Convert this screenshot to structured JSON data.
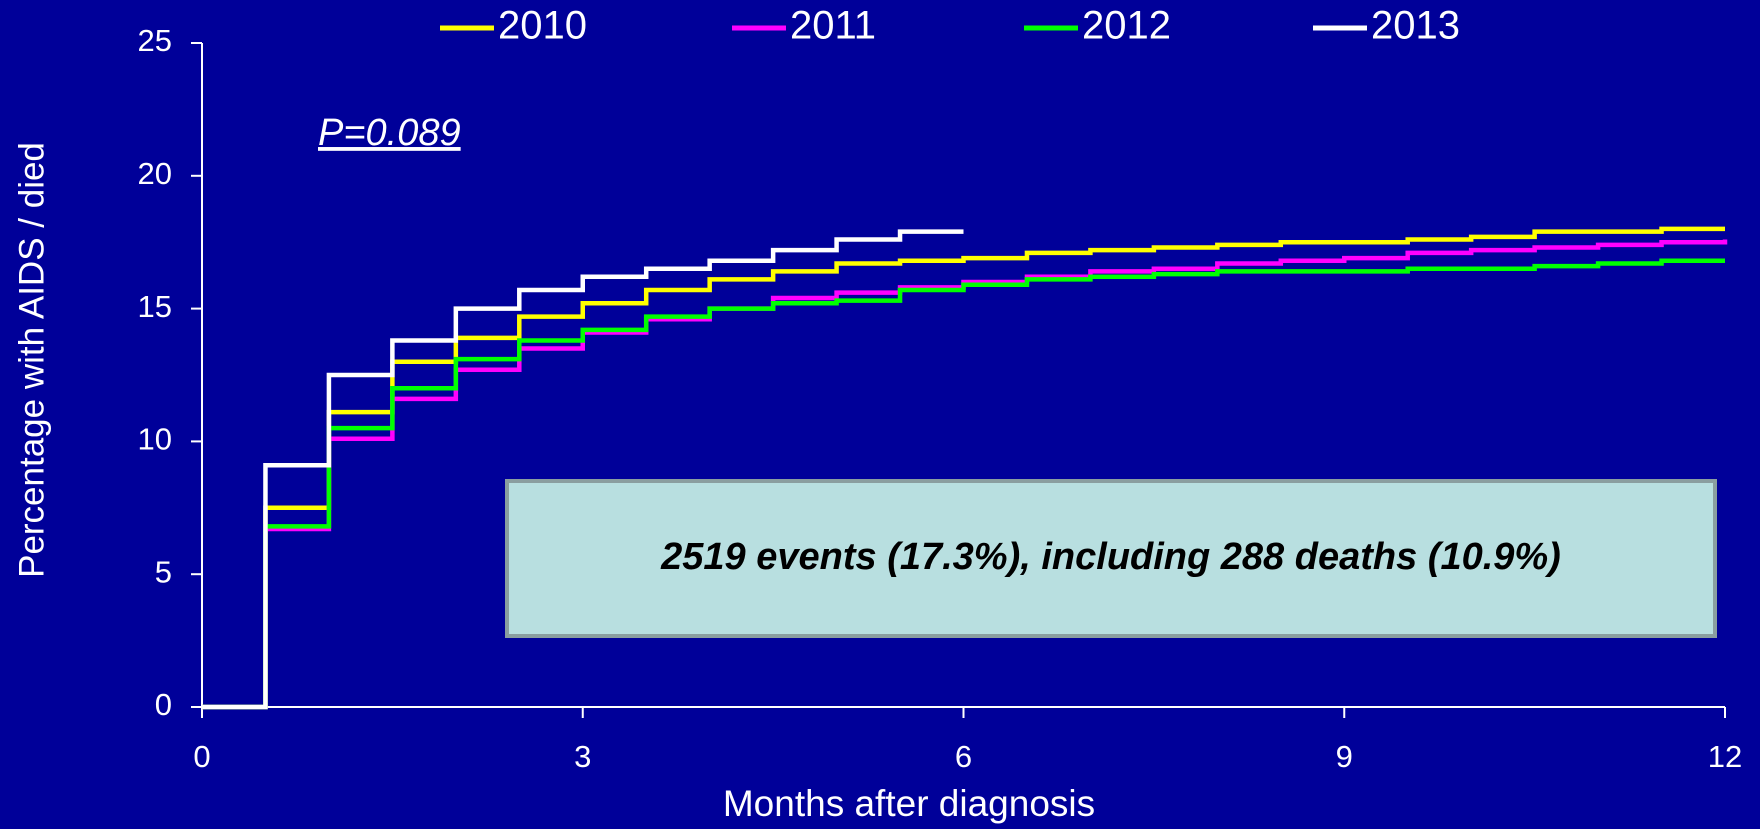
{
  "chart_data": {
    "type": "line",
    "step": true,
    "xlabel": "Months after diagnosis",
    "ylabel": "Percentage with AIDS / died",
    "xlim": [
      0,
      12
    ],
    "xticks": [
      0,
      3,
      6,
      9,
      12
    ],
    "ylim": [
      0,
      25
    ],
    "yticks": [
      0,
      5,
      10,
      15,
      20,
      25
    ],
    "grid": false,
    "legend": "top",
    "annotations": [
      "P=0.089",
      "2519 events (17.3%), including 288 deaths (10.9%)"
    ],
    "series": [
      {
        "name": "2010",
        "color": "#ffff00",
        "x": [
          0,
          0.5,
          1,
          1.5,
          2,
          2.5,
          3,
          3.5,
          4,
          4.5,
          5,
          5.5,
          6,
          6.5,
          7,
          7.5,
          8,
          8.5,
          9,
          9.5,
          10,
          10.5,
          11,
          11.5,
          12
        ],
        "values": [
          0,
          7.5,
          11.1,
          13.0,
          13.9,
          14.7,
          15.2,
          15.7,
          16.1,
          16.4,
          16.7,
          16.8,
          16.9,
          17.1,
          17.2,
          17.3,
          17.4,
          17.5,
          17.5,
          17.6,
          17.7,
          17.9,
          17.9,
          18.0,
          18.0
        ]
      },
      {
        "name": "2011",
        "color": "#ff00ff",
        "x": [
          0,
          0.5,
          1,
          1.5,
          2,
          2.5,
          3,
          3.5,
          4,
          4.5,
          5,
          5.5,
          6,
          6.5,
          7,
          7.5,
          8,
          8.5,
          9,
          9.5,
          10,
          10.5,
          11,
          11.5,
          12
        ],
        "values": [
          0,
          6.7,
          10.1,
          11.6,
          12.7,
          13.5,
          14.1,
          14.6,
          15.0,
          15.4,
          15.6,
          15.8,
          16.0,
          16.2,
          16.4,
          16.5,
          16.7,
          16.8,
          16.9,
          17.1,
          17.2,
          17.3,
          17.4,
          17.5,
          17.6
        ]
      },
      {
        "name": "2012",
        "color": "#00ff00",
        "x": [
          0,
          0.5,
          1,
          1.5,
          2,
          2.5,
          3,
          3.5,
          4,
          4.5,
          5,
          5.5,
          6,
          6.5,
          7,
          7.5,
          8,
          8.5,
          9,
          9.5,
          10,
          10.5,
          11,
          11.5,
          12
        ],
        "values": [
          0,
          6.8,
          10.5,
          12.0,
          13.1,
          13.8,
          14.2,
          14.7,
          15.0,
          15.2,
          15.3,
          15.7,
          15.9,
          16.1,
          16.2,
          16.3,
          16.4,
          16.4,
          16.4,
          16.5,
          16.5,
          16.6,
          16.7,
          16.8,
          16.8
        ]
      },
      {
        "name": "2013",
        "color": "#ffffff",
        "x": [
          0,
          0.5,
          1,
          1.5,
          2,
          2.5,
          3,
          3.5,
          4,
          4.5,
          5,
          5.5,
          6
        ],
        "values": [
          0,
          9.1,
          12.5,
          13.8,
          15.0,
          15.7,
          16.2,
          16.5,
          16.8,
          17.2,
          17.6,
          17.9,
          17.9
        ]
      }
    ]
  }
}
